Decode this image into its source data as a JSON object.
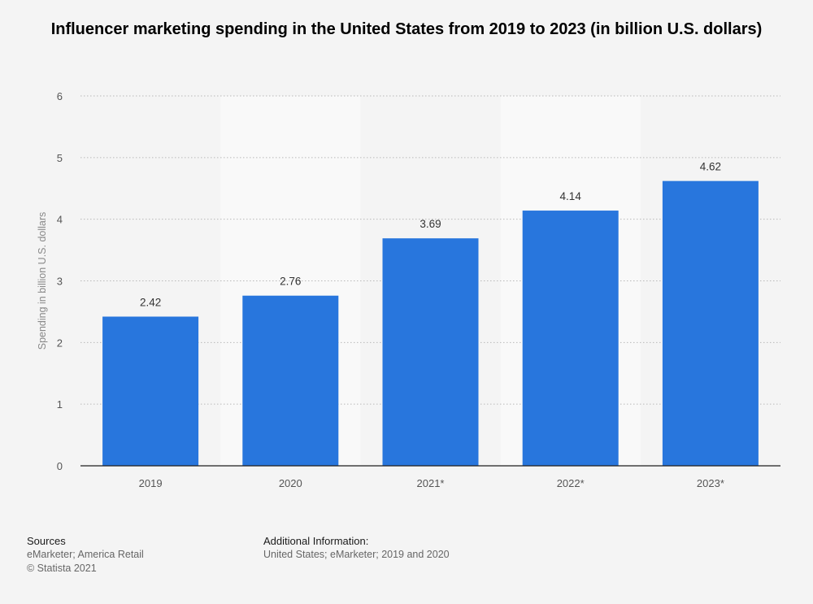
{
  "chart_data": {
    "type": "bar",
    "title": "Influencer marketing spending in the United States from 2019 to 2023 (in billion U.S. dollars)",
    "xlabel": "",
    "ylabel": "Spending in billion U.S. dollars",
    "categories": [
      "2019",
      "2020",
      "2021*",
      "2022*",
      "2023*"
    ],
    "values": [
      2.42,
      2.76,
      3.69,
      4.14,
      4.62
    ],
    "data_labels": [
      "2.42",
      "2.76",
      "3.69",
      "4.14",
      "4.62"
    ],
    "ylim": [
      0,
      6
    ],
    "yticks": [
      "0",
      "1",
      "2",
      "3",
      "4",
      "5",
      "6"
    ],
    "grid": true,
    "legend": "none",
    "bar_color": "#2876dd",
    "shaded_band_color": "#f9f9f9"
  },
  "footer": {
    "sources_heading": "Sources",
    "sources_line1": "eMarketer; America Retail",
    "sources_line2": "© Statista 2021",
    "additional_heading": "Additional Information:",
    "additional_text": "United States; eMarketer; 2019 and 2020"
  }
}
